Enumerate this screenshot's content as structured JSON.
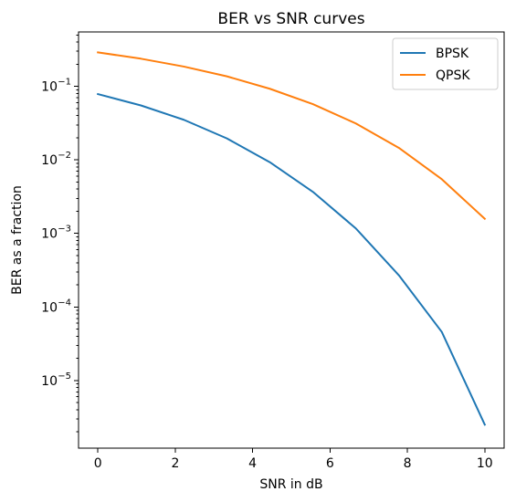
{
  "chart_data": {
    "type": "line",
    "title": "BER vs SNR curves",
    "xlabel": "SNR in dB",
    "ylabel": "BER as a fraction",
    "yscale": "log",
    "grid": false,
    "legend_placement": "top-right",
    "xlim": [
      -0.5,
      10.5
    ],
    "ylim": [
      1.2e-06,
      0.55
    ],
    "x_ticks": [
      0,
      2,
      4,
      6,
      8,
      10
    ],
    "x_tick_labels": [
      "0",
      "2",
      "4",
      "6",
      "8",
      "10"
    ],
    "y_ticks": [
      1e-05,
      0.0001,
      0.001,
      0.01,
      0.1
    ],
    "y_tick_base": "10",
    "y_tick_exponents": [
      "−5",
      "−4",
      "−3",
      "−2",
      "−1"
    ],
    "x": [
      0,
      1.111,
      2.222,
      3.333,
      4.444,
      5.556,
      6.667,
      7.778,
      8.889,
      10
    ],
    "series": [
      {
        "name": "BPSK",
        "color": "#1f77b4",
        "values": [
          0.0786,
          0.0551,
          0.0351,
          0.0196,
          0.0093,
          0.00368,
          0.00117,
          0.00027,
          4.57e-05,
          2.5e-06
        ]
      },
      {
        "name": "QPSK",
        "color": "#ff7f0e",
        "values": [
          0.29,
          0.238,
          0.186,
          0.137,
          0.0928,
          0.0574,
          0.0313,
          0.0146,
          0.00546,
          0.00158
        ]
      }
    ]
  }
}
